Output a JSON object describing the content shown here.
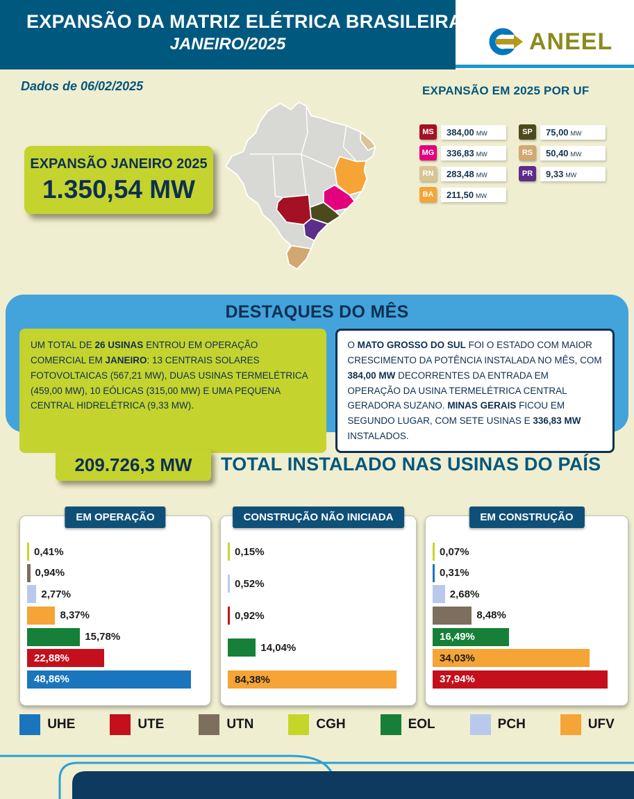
{
  "header": {
    "title_line1": "EXPANSÃO DA MATRIZ ELÉTRICA BRASILEIRA",
    "title_line2": "JANEIRO/2025",
    "brand": "ANEEL"
  },
  "subheader": {
    "data_date": "Dados de 06/02/2025",
    "uf_title": "EXPANSÃO EM 2025 POR UF"
  },
  "expansion_box": {
    "label": "EXPANSÃO JANEIRO 2025",
    "value": "1.350,54 MW"
  },
  "uf_items": [
    {
      "uf": "MS",
      "value": "384,00",
      "unit": "MW",
      "color": "#a51124"
    },
    {
      "uf": "MG",
      "value": "336,83",
      "unit": "MW",
      "color": "#e4007d"
    },
    {
      "uf": "RN",
      "value": "283,48",
      "unit": "MW",
      "color": "#d9c494"
    },
    {
      "uf": "BA",
      "value": "211,50",
      "unit": "MW",
      "color": "#f5a435"
    },
    {
      "uf": "SP",
      "value": "75,00",
      "unit": "MW",
      "color": "#4a4a1d"
    },
    {
      "uf": "RS",
      "value": "50,40",
      "unit": "MW",
      "color": "#d2a870"
    },
    {
      "uf": "PR",
      "value": "9,33",
      "unit": "MW",
      "color": "#5b2e89"
    }
  ],
  "highlights": {
    "title": "DESTAQUES DO MÊS",
    "left_text": "UM TOTAL DE **26 USINAS** ENTROU EM OPERAÇÃO COMERCIAL EM **JANEIRO**: 13 CENTRAIS SOLARES FOTOVOLTAICAS (567,21 MW), DUAS USINAS TERMELÉTRICA (459,00 MW), 10 EÓLICAS (315,00 MW) E UMA PEQUENA CENTRAL HIDRELÉTRICA (9,33 MW).",
    "right_text": "O **MATO GROSSO DO SUL** FOI O ESTADO COM MAIOR CRESCIMENTO DA POTÊNCIA INSTALADA NO MÊS, COM **384,00 MW** DECORRENTES DA ENTRADA EM OPERAÇÃO DA USINA TERMELÉTRICA CENTRAL GERADORA SUZANO. **MINAS GERAIS** FICOU EM SEGUNDO LUGAR, COM SETE USINAS E **336,83 MW** INSTALADOS."
  },
  "total": {
    "value": "209.726,3 MW",
    "label": "TOTAL INSTALADO NAS USINAS DO PAÍS"
  },
  "chart_data": [
    {
      "type": "bar",
      "title": "EM OPERAÇÃO",
      "orientation": "horizontal",
      "unit": "%",
      "bars": [
        {
          "category": "CGH",
          "value": 0.41,
          "label": "0,41%",
          "color": "#c6d628",
          "label_pos": "outside"
        },
        {
          "category": "UTN",
          "value": 0.94,
          "label": "0,94%",
          "color": "#7d6e5d",
          "label_pos": "outside"
        },
        {
          "category": "PCH",
          "value": 2.77,
          "label": "2,77%",
          "color": "#b9c9ed",
          "label_pos": "outside"
        },
        {
          "category": "UFV",
          "value": 8.37,
          "label": "8,37%",
          "color": "#f5a435",
          "label_pos": "outside"
        },
        {
          "category": "EOL",
          "value": 15.78,
          "label": "15,78%",
          "color": "#168038",
          "label_pos": "outside"
        },
        {
          "category": "UTE",
          "value": 22.88,
          "label": "22,88%",
          "color": "#c3101c",
          "label_pos": "inside",
          "label_color": "#ffffff"
        },
        {
          "category": "UHE",
          "value": 48.86,
          "label": "48,86%",
          "color": "#1b75bc",
          "label_pos": "inside",
          "label_color": "#ffffff"
        }
      ]
    },
    {
      "type": "bar",
      "title": "CONSTRUÇÃO NÃO INICIADA",
      "orientation": "horizontal",
      "unit": "%",
      "bars": [
        {
          "category": "CGH",
          "value": 0.15,
          "label": "0,15%",
          "color": "#c6d628",
          "label_pos": "outside"
        },
        {
          "category": "PCH",
          "value": 0.52,
          "label": "0,52%",
          "color": "#b9c9ed",
          "label_pos": "outside"
        },
        {
          "category": "UTE",
          "value": 0.92,
          "label": "0,92%",
          "color": "#c3101c",
          "label_pos": "outside"
        },
        {
          "category": "EOL",
          "value": 14.04,
          "label": "14,04%",
          "color": "#168038",
          "label_pos": "outside"
        },
        {
          "category": "UFV",
          "value": 84.38,
          "label": "84,38%",
          "color": "#f5a435",
          "label_pos": "inside",
          "label_color": "#1d1d1b"
        }
      ]
    },
    {
      "type": "bar",
      "title": "EM CONSTRUÇÃO",
      "orientation": "horizontal",
      "unit": "%",
      "bars": [
        {
          "category": "CGH",
          "value": 0.07,
          "label": "0,07%",
          "color": "#c6d628",
          "label_pos": "outside"
        },
        {
          "category": "UHE",
          "value": 0.31,
          "label": "0,31%",
          "color": "#1b75bc",
          "label_pos": "outside"
        },
        {
          "category": "PCH",
          "value": 2.68,
          "label": "2,68%",
          "color": "#b9c9ed",
          "label_pos": "outside"
        },
        {
          "category": "UTN",
          "value": 8.48,
          "label": "8,48%",
          "color": "#7d6e5d",
          "label_pos": "outside"
        },
        {
          "category": "EOL",
          "value": 16.49,
          "label": "16,49%",
          "color": "#168038",
          "label_pos": "inside",
          "label_color": "#ffffff"
        },
        {
          "category": "UFV",
          "value": 34.03,
          "label": "34,03%",
          "color": "#f5a435",
          "label_pos": "inside",
          "label_color": "#1d1d1b"
        },
        {
          "category": "UTE",
          "value": 37.94,
          "label": "37,94%",
          "color": "#c3101c",
          "label_pos": "inside",
          "label_color": "#ffffff"
        }
      ]
    }
  ],
  "type_legend": [
    {
      "code": "UHE",
      "color": "#1b75bc"
    },
    {
      "code": "UTE",
      "color": "#c3101c"
    },
    {
      "code": "UTN",
      "color": "#7d6e5d"
    },
    {
      "code": "CGH",
      "color": "#c6d628"
    },
    {
      "code": "EOL",
      "color": "#168038"
    },
    {
      "code": "PCH",
      "color": "#b9c9ed"
    },
    {
      "code": "UFV",
      "color": "#f5a435"
    }
  ],
  "colors": {
    "header_teal": "#00587e",
    "background": "#f0eed0",
    "lime": "#c4d32e",
    "navy": "#0d2f52",
    "banner_blue": "#42a4da",
    "heading_blue": "#00577d",
    "footer_navy": "#0e3a5f"
  }
}
